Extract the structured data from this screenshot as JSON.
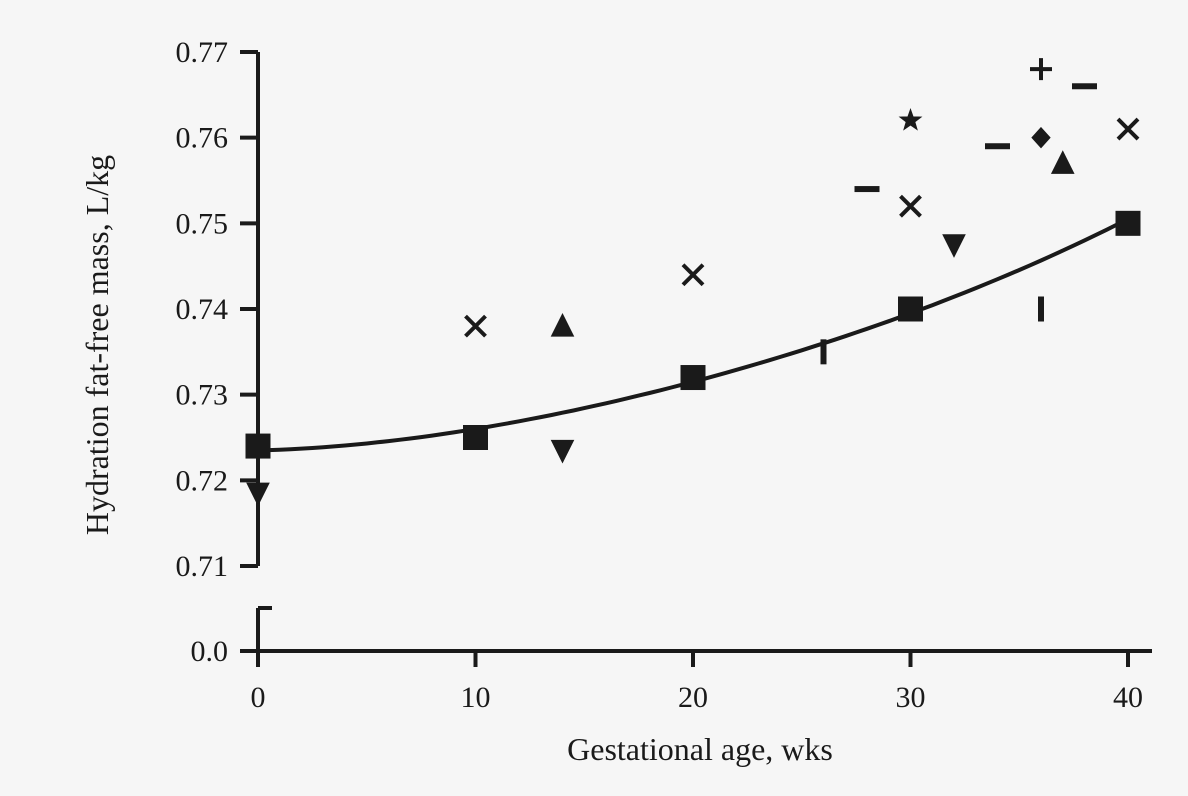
{
  "chart_data": {
    "type": "scatter",
    "xlabel": "Gestational age, wks",
    "ylabel": "Hydration fat-free mass, L/kg",
    "x_ticks": [
      "0",
      "10",
      "20",
      "30",
      "40"
    ],
    "y_ticks": [
      "0.0",
      "0.71",
      "0.72",
      "0.73",
      "0.74",
      "0.75",
      "0.76",
      "0.77"
    ],
    "xlim": [
      0,
      40
    ],
    "ylim_upper_segment": [
      0.71,
      0.77
    ],
    "y_axis_break": true,
    "grid": false,
    "fit_line": {
      "marker": "square",
      "x": [
        0,
        10,
        20,
        30,
        40
      ],
      "y": [
        0.7235,
        0.726,
        0.7315,
        0.7395,
        0.7505
      ]
    },
    "series": [
      {
        "marker": "square",
        "x": [
          0,
          10,
          20,
          30,
          40
        ],
        "y": [
          0.724,
          0.725,
          0.732,
          0.74,
          0.75
        ]
      },
      {
        "marker": "x",
        "x": [
          10,
          20,
          30,
          40
        ],
        "y": [
          0.738,
          0.744,
          0.752,
          0.761
        ]
      },
      {
        "marker": "triangle-up",
        "x": [
          14,
          37
        ],
        "y": [
          0.738,
          0.757
        ]
      },
      {
        "marker": "triangle-down",
        "x": [
          0,
          14,
          32
        ],
        "y": [
          0.7185,
          0.7235,
          0.7475
        ]
      },
      {
        "marker": "dash",
        "x": [
          28,
          34,
          38
        ],
        "y": [
          0.754,
          0.759,
          0.766
        ]
      },
      {
        "marker": "vbar",
        "x": [
          26,
          36
        ],
        "y": [
          0.735,
          0.74
        ]
      },
      {
        "marker": "star",
        "x": [
          30
        ],
        "y": [
          0.762
        ]
      },
      {
        "marker": "plus",
        "x": [
          36
        ],
        "y": [
          0.768
        ]
      },
      {
        "marker": "diamond",
        "x": [
          36
        ],
        "y": [
          0.76
        ]
      }
    ]
  }
}
